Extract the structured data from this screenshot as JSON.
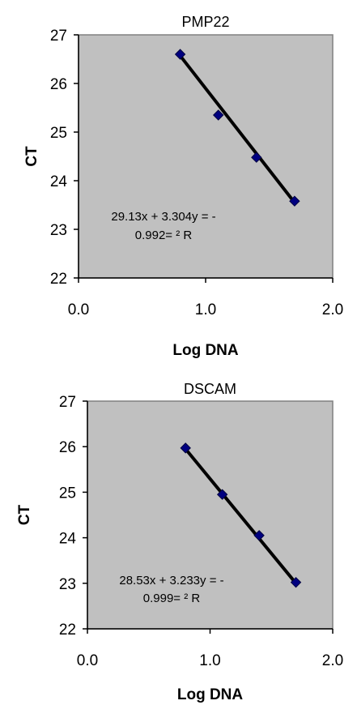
{
  "chart_data": [
    {
      "type": "scatter",
      "title": "PMP22",
      "xlabel": "Log DNA",
      "ylabel": "CT",
      "xlim": [
        0.0,
        2.0
      ],
      "ylim": [
        22,
        27
      ],
      "x_ticks": [
        "0.0",
        "1.0",
        "2.0"
      ],
      "y_ticks": [
        "22",
        "23",
        "24",
        "25",
        "26",
        "27"
      ],
      "grid": false,
      "plot_background": "#c0c0c0",
      "marker_color": "#000080",
      "trendline_color": "#000000",
      "points": [
        {
          "x": 0.8,
          "y": 26.6
        },
        {
          "x": 1.1,
          "y": 25.35
        },
        {
          "x": 1.4,
          "y": 24.48
        },
        {
          "x": 1.7,
          "y": 23.58
        }
      ],
      "trendline": {
        "x": [
          0.8,
          1.7
        ],
        "y": [
          26.57,
          23.55
        ]
      },
      "annotation": [
        "29.13x + 3.304y = -",
        "0.992= ² R"
      ]
    },
    {
      "type": "scatter",
      "title": "DSCAM",
      "xlabel": "Log DNA",
      "ylabel": "CT",
      "xlim": [
        0.0,
        2.0
      ],
      "ylim": [
        22,
        27
      ],
      "x_ticks": [
        "0.0",
        "1.0",
        "2.0"
      ],
      "y_ticks": [
        "22",
        "23",
        "24",
        "25",
        "26",
        "27"
      ],
      "grid": false,
      "plot_background": "#c0c0c0",
      "marker_color": "#000080",
      "trendline_color": "#000000",
      "points": [
        {
          "x": 0.8,
          "y": 25.97
        },
        {
          "x": 1.1,
          "y": 24.95
        },
        {
          "x": 1.4,
          "y": 24.05
        },
        {
          "x": 1.7,
          "y": 23.02
        }
      ],
      "trendline": {
        "x": [
          0.8,
          1.7
        ],
        "y": [
          25.95,
          23.0
        ]
      },
      "annotation": [
        "28.53x + 3.233y = -",
        "0.999= ² R"
      ]
    }
  ]
}
